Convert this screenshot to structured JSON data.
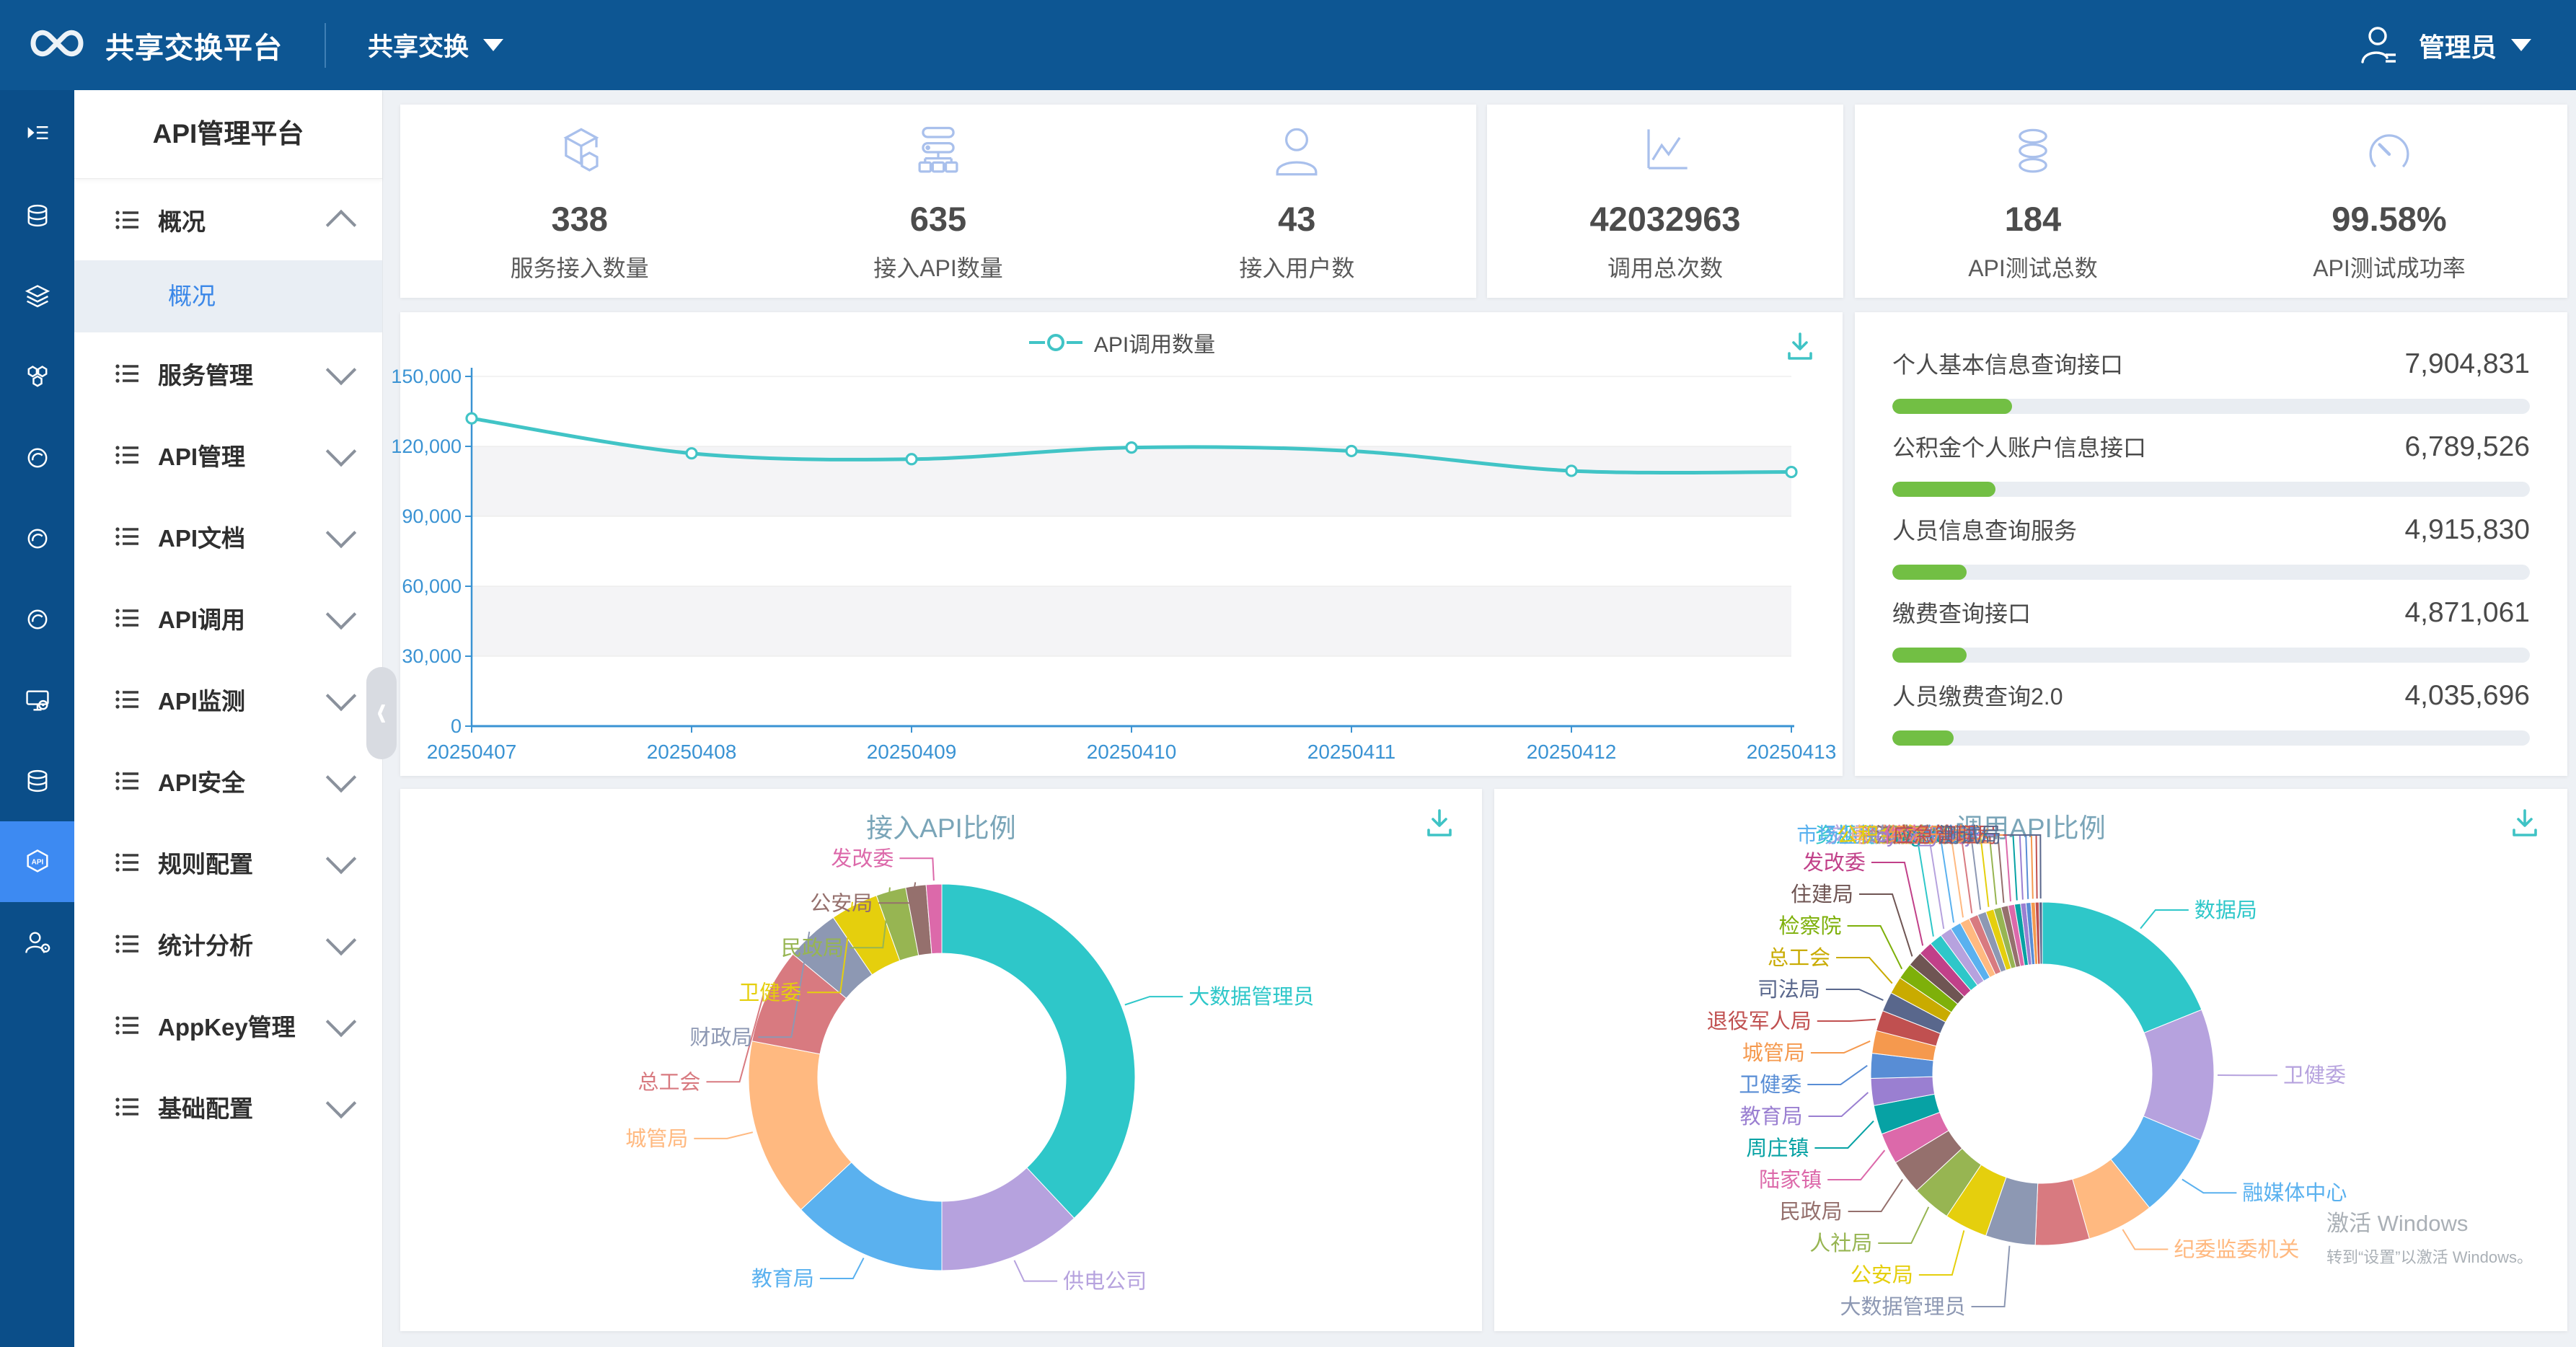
{
  "navbar": {
    "brand": "共享交换平台",
    "menu": "共享交换",
    "user": "管理员"
  },
  "sidebar": {
    "title": "API管理平台",
    "rail": [
      {
        "icon": "menu-toggle"
      },
      {
        "icon": "database"
      },
      {
        "icon": "layers"
      },
      {
        "icon": "hexagons"
      },
      {
        "icon": "ring"
      },
      {
        "icon": "ring"
      },
      {
        "icon": "ring"
      },
      {
        "icon": "monitor-gear"
      },
      {
        "icon": "database"
      },
      {
        "icon": "api-cube",
        "active": true
      },
      {
        "icon": "user-gear"
      }
    ],
    "items": [
      {
        "key": "overview",
        "label": "概况",
        "expanded": true,
        "children": [
          {
            "key": "overview-sub",
            "label": "概况",
            "active": true
          }
        ]
      },
      {
        "key": "service-mgmt",
        "label": "服务管理"
      },
      {
        "key": "api-mgmt",
        "label": "API管理"
      },
      {
        "key": "api-docs",
        "label": "API文档"
      },
      {
        "key": "api-call",
        "label": "API调用"
      },
      {
        "key": "api-monitor",
        "label": "API监测"
      },
      {
        "key": "api-security",
        "label": "API安全"
      },
      {
        "key": "rule-config",
        "label": "规则配置"
      },
      {
        "key": "stats-analysis",
        "label": "统计分析"
      },
      {
        "key": "appkey-mgmt",
        "label": "AppKey管理"
      },
      {
        "key": "base-config",
        "label": "基础配置"
      }
    ]
  },
  "stats": {
    "groups": [
      {
        "items": [
          {
            "key": "service-count",
            "icon": "cube",
            "value": "338",
            "label": "服务接入数量"
          },
          {
            "key": "api-count",
            "icon": "sitemap",
            "value": "635",
            "label": "接入API数量"
          },
          {
            "key": "user-count",
            "icon": "user",
            "value": "43",
            "label": "接入用户数"
          }
        ]
      },
      {
        "items": [
          {
            "key": "call-total",
            "icon": "chart",
            "value": "42032963",
            "label": "调用总次数"
          }
        ]
      },
      {
        "items": [
          {
            "key": "api-test-total",
            "icon": "coins",
            "value": "184",
            "label": "API测试总数"
          },
          {
            "key": "api-test-success",
            "icon": "gauge",
            "value": "99.58%",
            "label": "API测试成功率"
          }
        ]
      }
    ]
  },
  "line_chart": {
    "type": "line",
    "legend": "API调用数量",
    "x": [
      "20250407",
      "20250408",
      "20250409",
      "20250410",
      "20250411",
      "20250412",
      "20250413"
    ],
    "values": [
      132000,
      117000,
      114500,
      119500,
      118000,
      109500,
      109000
    ],
    "y_ticks": [
      0,
      30000,
      60000,
      90000,
      120000,
      150000
    ],
    "ylim": [
      0,
      150000
    ],
    "line_color": "#41c4c6",
    "axis_color": "#3a93d3",
    "band_color": "#f4f4f6",
    "grid": true,
    "legend_position": "top-center"
  },
  "top_apis": {
    "bar_color": "#72bf44",
    "items": [
      {
        "name": "个人基本信息查询接口",
        "value": "7,904,831"
      },
      {
        "name": "公积金个人账户信息接口",
        "value": "6,789,526"
      },
      {
        "name": "人员信息查询服务",
        "value": "4,915,830"
      },
      {
        "name": "缴费查询接口",
        "value": "4,871,061"
      },
      {
        "name": "人员缴费查询2.0",
        "value": "4,035,696"
      }
    ]
  },
  "donut_left": {
    "type": "pie",
    "title": "接入API比例",
    "slices": [
      {
        "label": "大数据管理员",
        "value": 38,
        "color": "#2ec7c9"
      },
      {
        "label": "供电公司",
        "value": 12,
        "color": "#b6a2de"
      },
      {
        "label": "教育局",
        "value": 13,
        "color": "#5ab1ef"
      },
      {
        "label": "城管局",
        "value": 15,
        "color": "#ffb980"
      },
      {
        "label": "总工会",
        "value": 8,
        "color": "#d87a80"
      },
      {
        "label": "财政局",
        "value": 4.5,
        "color": "#8d98b3"
      },
      {
        "label": "卫健委",
        "value": 4,
        "color": "#e5cf0d"
      },
      {
        "label": "民政局",
        "value": 2.5,
        "color": "#97b552"
      },
      {
        "label": "公安局",
        "value": 1.7,
        "color": "#95706d"
      },
      {
        "label": "发改委",
        "value": 1.3,
        "color": "#dc69aa"
      }
    ]
  },
  "donut_right": {
    "type": "pie",
    "title": "调用API比例",
    "slices": [
      {
        "label": "数据局",
        "value": 18.6,
        "color": "#2ec7c9"
      },
      {
        "label": "卫健委",
        "value": 12.2,
        "color": "#b6a2de"
      },
      {
        "label": "融媒体中心",
        "value": 7.8,
        "color": "#5ab1ef"
      },
      {
        "label": "纪委监委机关",
        "value": 6.2,
        "color": "#ffb980"
      },
      {
        "label": "",
        "value": 5.0,
        "color": "#d87a80"
      },
      {
        "label": "大数据管理员",
        "value": 4.6,
        "color": "#8d98b3"
      },
      {
        "label": "公安局",
        "value": 4.0,
        "color": "#e5cf0d"
      },
      {
        "label": "人社局",
        "value": 3.6,
        "color": "#97b552"
      },
      {
        "label": "民政局",
        "value": 3.2,
        "color": "#95706d"
      },
      {
        "label": "陆家镇",
        "value": 2.9,
        "color": "#dc69aa"
      },
      {
        "label": "周庄镇",
        "value": 2.7,
        "color": "#07a2a4"
      },
      {
        "label": "教育局",
        "value": 2.5,
        "color": "#9a7fd1"
      },
      {
        "label": "卫健委",
        "value": 2.3,
        "color": "#588dd5"
      },
      {
        "label": "城管局",
        "value": 2.1,
        "color": "#f5994e"
      },
      {
        "label": "退役军人局",
        "value": 1.9,
        "color": "#c05050"
      },
      {
        "label": "司法局",
        "value": 1.8,
        "color": "#59678c"
      },
      {
        "label": "总工会",
        "value": 1.6,
        "color": "#c9ab00"
      },
      {
        "label": "检察院",
        "value": 1.5,
        "color": "#7eb00a"
      },
      {
        "label": "住建局",
        "value": 1.4,
        "color": "#6f5553"
      },
      {
        "label": "发改委",
        "value": 1.3,
        "color": "#c14089"
      },
      {
        "label": "资规局",
        "value": 1.2,
        "color": "#2ec7c9"
      },
      {
        "label": "交通局",
        "value": 1.1,
        "color": "#b6a2de"
      },
      {
        "label": "市场监管局",
        "value": 1.0,
        "color": "#5ab1ef"
      },
      {
        "label": "审计局",
        "value": 0.9,
        "color": "#ffb980"
      },
      {
        "label": "资规局",
        "value": 0.85,
        "color": "#d87a80"
      },
      {
        "label": "政法委",
        "value": 0.8,
        "color": "#8d98b3"
      },
      {
        "label": "公积金中心",
        "value": 0.75,
        "color": "#e5cf0d"
      },
      {
        "label": "财政局",
        "value": 0.7,
        "color": "#97b552"
      },
      {
        "label": "江南水务",
        "value": 0.65,
        "color": "#95706d"
      },
      {
        "label": "供电公司",
        "value": 0.6,
        "color": "#dc69aa"
      },
      {
        "label": "migration",
        "value": 0.55,
        "color": "#07a2a4"
      },
      {
        "label": "cyzx_ywcjk",
        "value": 0.5,
        "color": "#9a7fd1"
      },
      {
        "label": "统战部",
        "value": 0.45,
        "color": "#588dd5"
      },
      {
        "label": "经济开发区",
        "value": 0.4,
        "color": "#f5994e"
      },
      {
        "label": "应急管理局",
        "value": 0.35,
        "color": "#c05050"
      },
      {
        "label": "测试局",
        "value": 0.3,
        "color": "#59678c"
      }
    ]
  },
  "watermark": {
    "line1": "激活 Windows",
    "line2": "转到“设置”以激活 Windows。"
  },
  "colors": {
    "navbar": "#0d5693",
    "rail": "#0b4e89",
    "rail_active": "#3d8af2",
    "accent_teal": "#41c4c6",
    "axis_blue": "#3a93d3",
    "progress_green": "#72bf44",
    "title_teal": "#7aa5b8",
    "page_bg": "#eef1f5"
  }
}
